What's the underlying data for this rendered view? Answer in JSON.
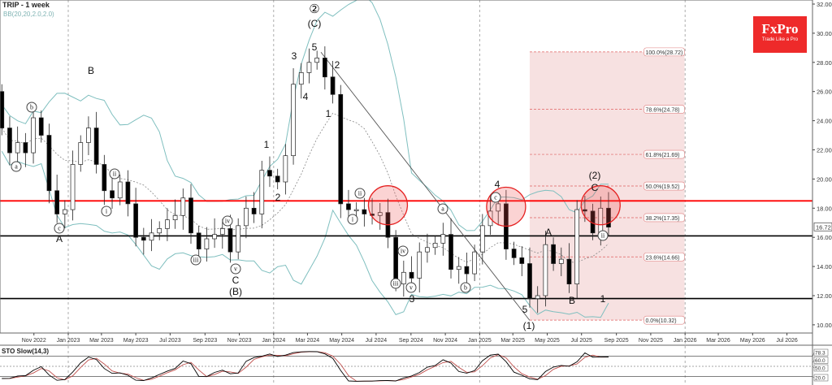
{
  "header": {
    "title": "TRIP - 1 week",
    "indicator": "BB(20,20,2.0,2.0)",
    "oscillator": "STO Slow(14,3)"
  },
  "logo": {
    "brand": "FxPro",
    "tagline": "Trade Like a Pro",
    "color": "#ee2a2a"
  },
  "chart_data": {
    "type": "candlestick",
    "title": "TRIP - 1 week",
    "ylim": [
      9.5,
      32.3
    ],
    "yticks": [
      10,
      12,
      14,
      16,
      18,
      20,
      22,
      24,
      26,
      28,
      30,
      32
    ],
    "ytick_labels": [
      "10.00",
      "12.00",
      "14.00",
      "16.00",
      "18.00",
      "20.00",
      "22.00",
      "24.00",
      "26.00",
      "28.00",
      "30.00",
      "32.00"
    ],
    "xtick_labels": [
      [
        "2022-11-01",
        "Nov 2022"
      ],
      [
        "2023-01-01",
        "Jan 2023"
      ],
      [
        "2023-03-01",
        "Mar 2023"
      ],
      [
        "2023-05-01",
        "May 2023"
      ],
      [
        "2023-07-01",
        "Jul 2023"
      ],
      [
        "2023-09-01",
        "Sep 2023"
      ],
      [
        "2023-11-01",
        "Nov 2023"
      ],
      [
        "2024-01-01",
        "Jan 2024"
      ],
      [
        "2024-03-01",
        "Mar 2024"
      ],
      [
        "2024-05-01",
        "May 2024"
      ],
      [
        "2024-07-01",
        "Jul 2024"
      ],
      [
        "2024-09-01",
        "Sep 2024"
      ],
      [
        "2024-11-01",
        "Nov 2024"
      ],
      [
        "2025-01-01",
        "Jan 2025"
      ],
      [
        "2025-03-01",
        "Mar 2025"
      ],
      [
        "2025-05-01",
        "May 2025"
      ],
      [
        "2025-07-01",
        "Jul 2025"
      ],
      [
        "2025-09-01",
        "Sep 2025"
      ],
      [
        "2025-11-01",
        "Nov 2025"
      ],
      [
        "2026-01-01",
        "Jan 2026"
      ],
      [
        "2026-03-01",
        "Mar 2026"
      ],
      [
        "2026-05-01",
        "May 2026"
      ],
      [
        "2026-07-01",
        "Jul 2026"
      ]
    ],
    "first_open": 26.0,
    "dates": [
      "2022-09-05",
      "2022-09-19",
      "2022-10-03",
      "2022-10-17",
      "2022-10-31",
      "2022-11-14",
      "2022-11-28",
      "2022-12-12",
      "2022-12-26",
      "2023-01-09",
      "2023-01-23",
      "2023-02-06",
      "2023-02-20",
      "2023-03-06",
      "2023-03-20",
      "2023-04-03",
      "2023-04-17",
      "2023-05-01",
      "2023-05-15",
      "2023-05-29",
      "2023-06-12",
      "2023-06-26",
      "2023-07-10",
      "2023-07-24",
      "2023-08-07",
      "2023-08-21",
      "2023-09-04",
      "2023-09-18",
      "2023-10-02",
      "2023-10-16",
      "2023-10-30",
      "2023-11-13",
      "2023-11-27",
      "2023-12-11",
      "2023-12-25",
      "2024-01-08",
      "2024-01-22",
      "2024-02-05",
      "2024-02-19",
      "2024-03-04",
      "2024-03-18",
      "2024-04-01",
      "2024-04-15",
      "2024-04-29",
      "2024-05-13",
      "2024-05-27",
      "2024-06-10",
      "2024-06-24",
      "2024-07-08",
      "2024-07-22",
      "2024-08-05",
      "2024-08-19",
      "2024-09-02",
      "2024-09-16",
      "2024-09-30",
      "2024-10-14",
      "2024-10-28",
      "2024-11-11",
      "2024-11-25",
      "2024-12-09",
      "2024-12-23",
      "2025-01-06",
      "2025-01-20",
      "2025-02-03",
      "2025-02-17",
      "2025-03-03",
      "2025-03-17",
      "2025-03-31",
      "2025-04-14",
      "2025-04-28",
      "2025-05-12",
      "2025-05-26",
      "2025-06-09",
      "2025-06-23",
      "2025-07-07",
      "2025-07-21",
      "2025-08-04",
      "2025-08-18"
    ],
    "close": [
      23.5,
      21.8,
      22.5,
      21.8,
      24.2,
      23.0,
      19.2,
      17.6,
      17.9,
      21.0,
      22.5,
      23.5,
      21.0,
      19.2,
      18.7,
      19.8,
      18.3,
      16.0,
      15.8,
      16.3,
      16.6,
      17.2,
      17.5,
      18.7,
      16.3,
      15.2,
      15.9,
      16.2,
      16.6,
      15.0,
      16.8,
      18.0,
      17.6,
      20.6,
      20.2,
      19.8,
      21.6,
      26.5,
      27.3,
      28.0,
      28.3,
      27.0,
      25.8,
      18.3,
      17.9,
      17.9,
      17.6,
      17.5,
      17.7,
      16.0,
      12.8,
      13.6,
      13.2,
      15.0,
      15.3,
      15.6,
      16.2,
      13.8,
      14.0,
      13.5,
      15.0,
      16.8,
      17.8,
      18.3,
      15.2,
      14.6,
      14.2,
      11.8,
      12.0,
      15.5,
      14.2,
      14.5,
      12.8,
      17.9,
      17.8,
      16.3,
      18.0,
      16.7
    ],
    "current_price": "16.72",
    "horizontal_levels": [
      {
        "price": 18.5,
        "color": "#ff0000"
      },
      {
        "price": 16.1,
        "color": "#000000"
      },
      {
        "price": 11.8,
        "color": "#000000"
      }
    ],
    "trendline": [
      [
        "2024-03-25",
        28.7
      ],
      [
        "2025-03-31",
        10.3
      ]
    ],
    "fibonacci": {
      "from": "2025-03-31",
      "to": "2025-12-31",
      "color": "#f5dada",
      "levels": [
        {
          "price": 28.72,
          "label": "100.0%(28.72)"
        },
        {
          "price": 24.78,
          "label": "78.6%(24.78)"
        },
        {
          "price": 21.69,
          "label": "61.8%(21.69)"
        },
        {
          "price": 19.52,
          "label": "50.0%(19.52)"
        },
        {
          "price": 17.35,
          "label": "38.2%(17.35)"
        },
        {
          "price": 14.66,
          "label": "23.6%(14.66)"
        },
        {
          "price": 10.32,
          "label": "0.0%(10.32)"
        }
      ]
    },
    "highlight_circles": [
      [
        "2024-07-22",
        18.2
      ],
      [
        "2025-02-17",
        18.1
      ],
      [
        "2025-08-04",
        18.2
      ]
    ],
    "wave_labels": [
      "a",
      "b",
      "c",
      "A",
      "B",
      "i",
      "ii",
      "iii",
      "iv",
      "v",
      "C",
      "(B)",
      "1",
      "2",
      "②",
      "(C)",
      "5",
      "3",
      "4",
      "1",
      "2",
      "i",
      "ii",
      "iii",
      "iv",
      "v",
      "3",
      "a",
      "b",
      "c",
      "4",
      "5",
      "(1)",
      "A",
      "B",
      "1",
      "(2)",
      "C",
      "ii"
    ],
    "stochastic": {
      "levels": [
        "78.3",
        "60.0",
        "50.0",
        "20.0"
      ],
      "k_color": "#000000",
      "d_color": "#c0504d"
    },
    "bollinger_color": "#7fbfbf"
  }
}
